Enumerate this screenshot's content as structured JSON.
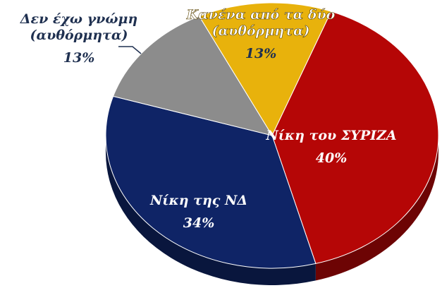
{
  "chart_data": {
    "type": "pie",
    "categories": [
      "Κανένα από τα δύο\n(αυθόρμητα)",
      "Νίκη του ΣΥΡΙΖΑ",
      "Νίκη της ΝΔ",
      "Δεν έχω γνώμη\n(αυθόρμητα)"
    ],
    "values": [
      13,
      40,
      34,
      13
    ],
    "value_labels": [
      "13%",
      "40%",
      "34%",
      "13%"
    ],
    "colors": [
      "#e8b20c",
      "#b50606",
      "#0f2466",
      "#8c8c8c"
    ]
  }
}
